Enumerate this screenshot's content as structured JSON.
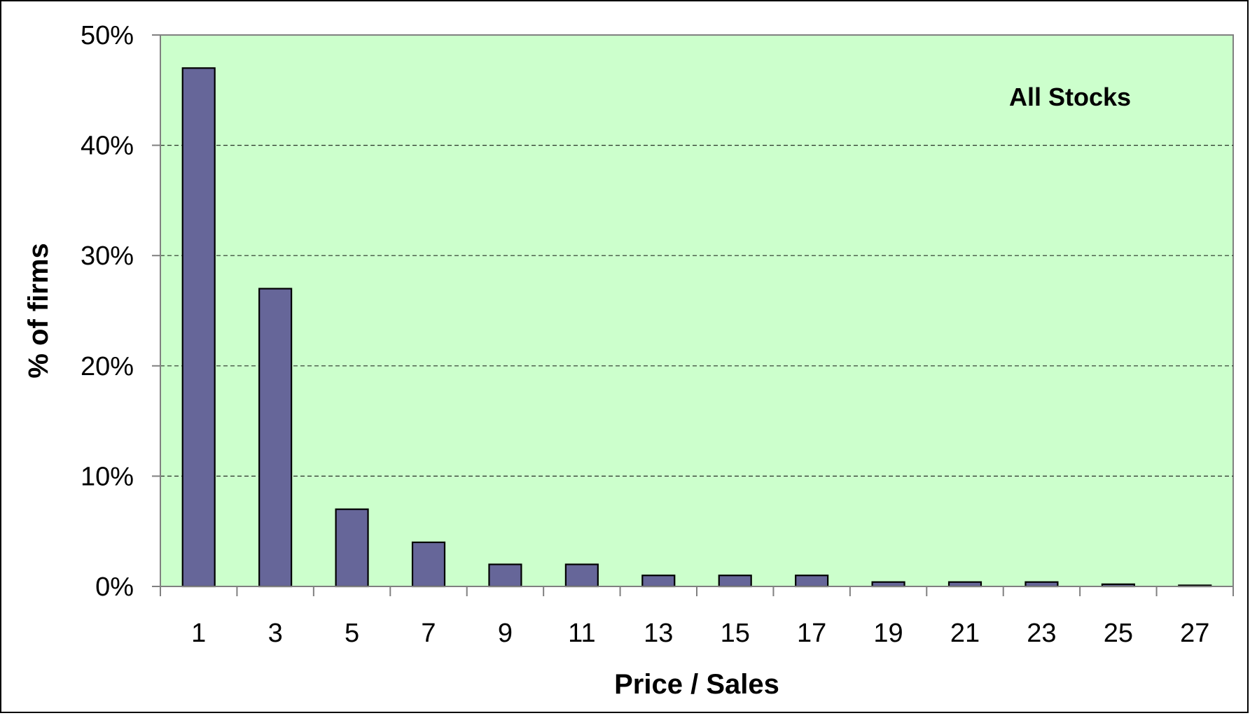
{
  "chart_data": {
    "type": "bar",
    "categories": [
      "1",
      "3",
      "5",
      "7",
      "9",
      "11",
      "13",
      "15",
      "17",
      "19",
      "21",
      "23",
      "25",
      "27"
    ],
    "values": [
      47,
      27,
      7,
      4,
      2,
      2,
      1,
      1,
      1,
      0.4,
      0.4,
      0.4,
      0.2,
      0.1
    ],
    "title": "",
    "annotation": "All Stocks",
    "xlabel": "Price / Sales",
    "ylabel": "% of firms",
    "ylim": [
      0,
      50
    ],
    "yticks": [
      "0%",
      "10%",
      "20%",
      "30%",
      "40%",
      "50%"
    ],
    "grid": "horizontal dashed",
    "legend": "none",
    "colors": {
      "plot_background": "#ccffcc",
      "bar_fill": "#666699",
      "bar_stroke": "#000000",
      "gridline": "#000000",
      "axis": "#808080"
    }
  }
}
